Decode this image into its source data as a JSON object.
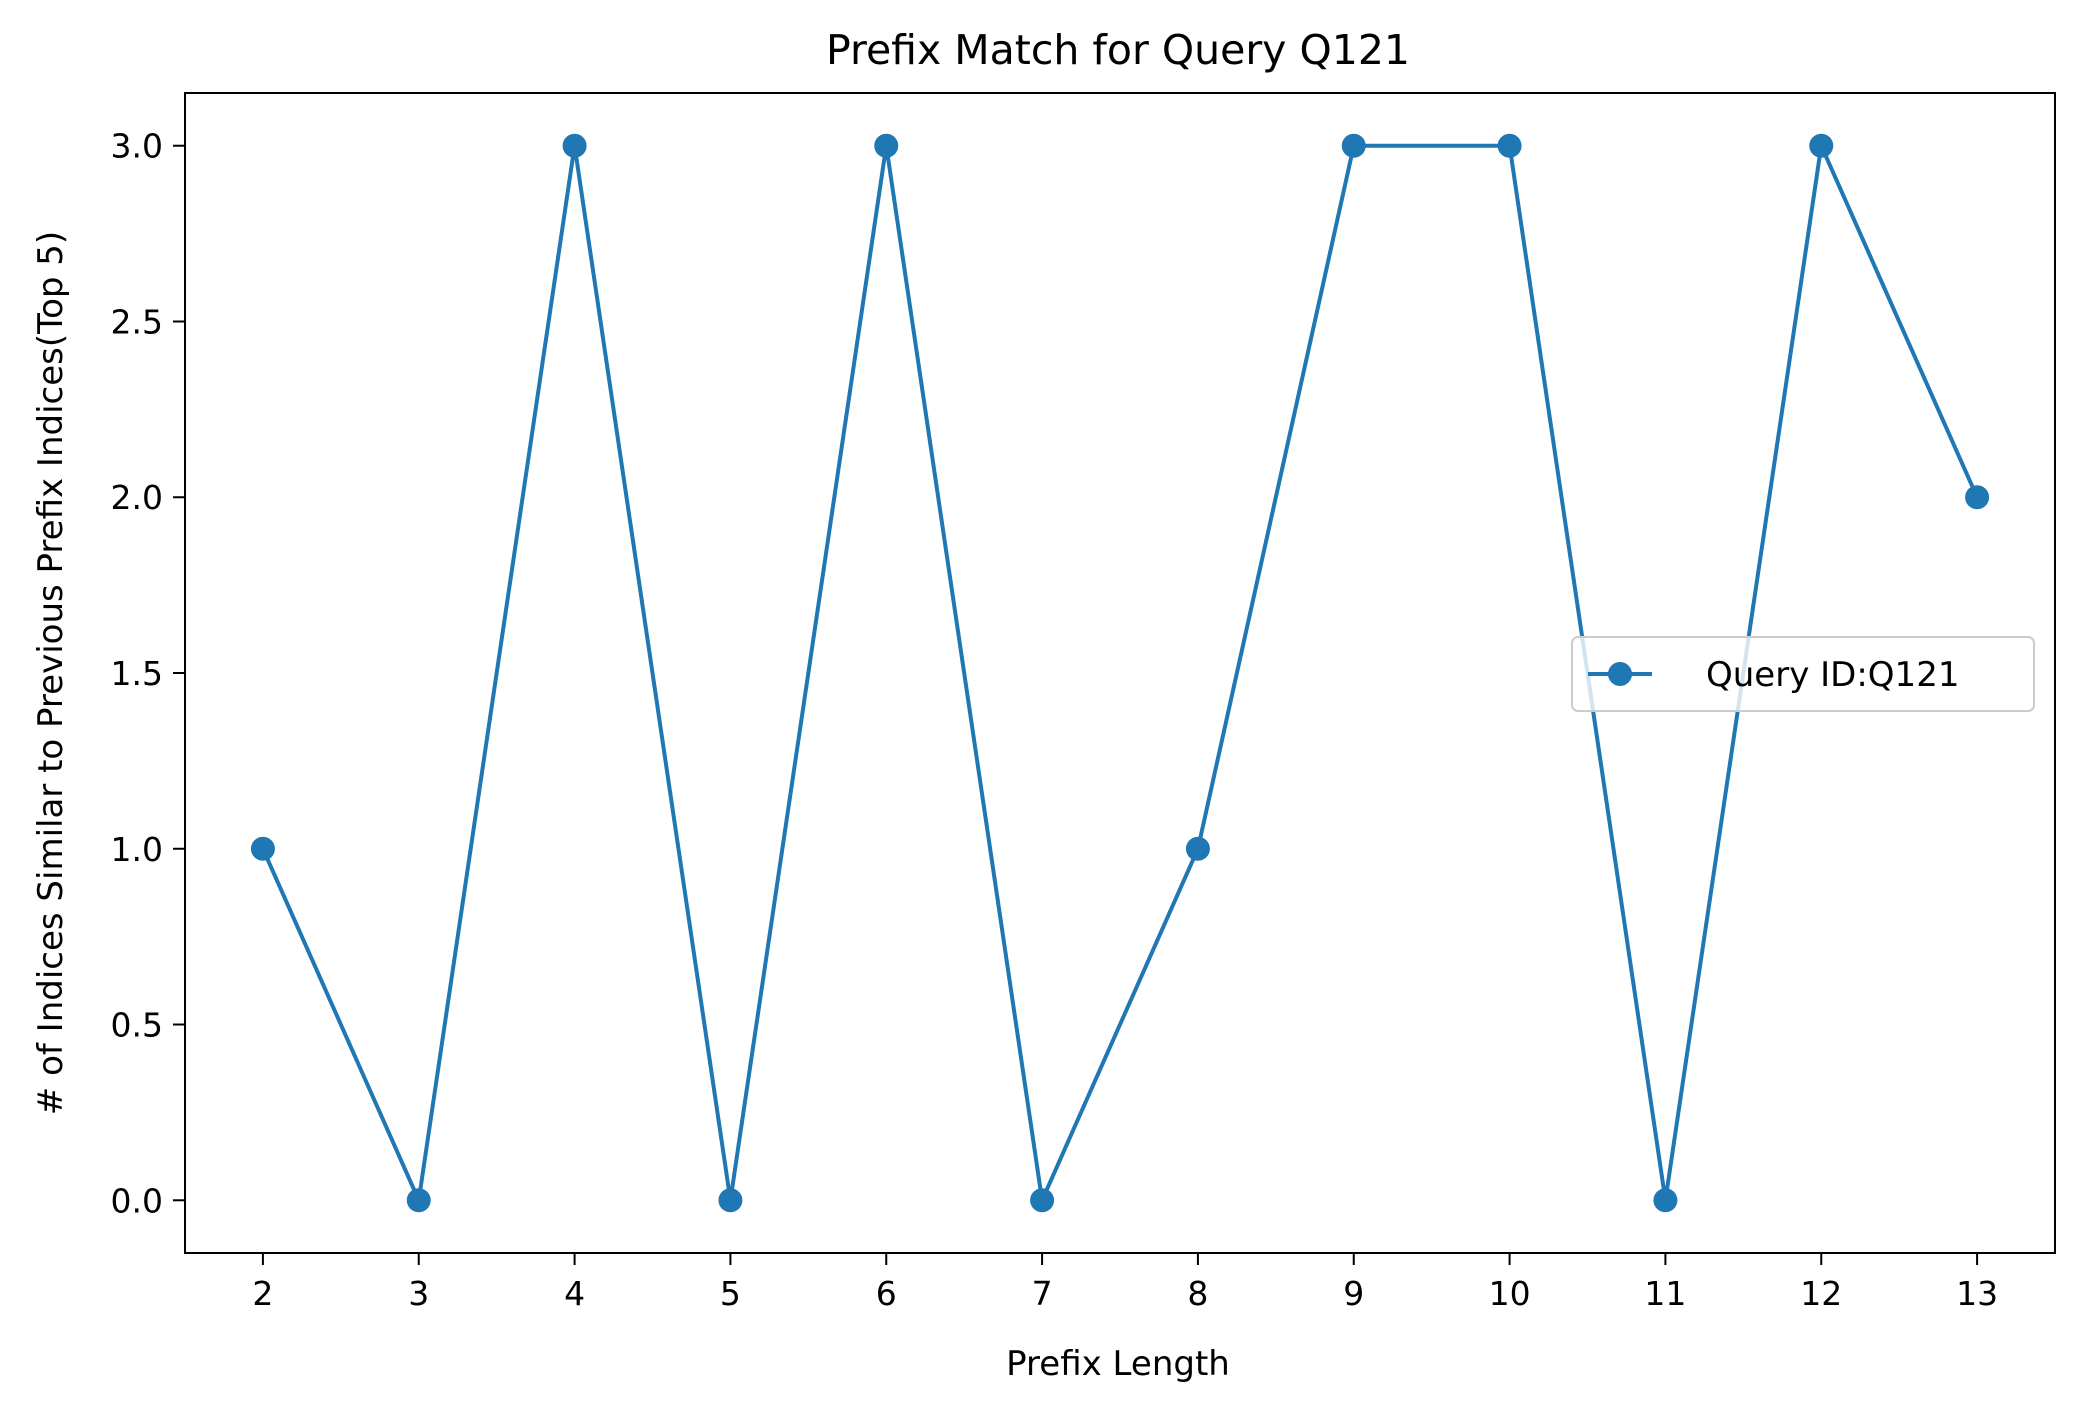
{
  "chart_data": {
    "type": "line",
    "title": "Prefix Match for Query Q121",
    "xlabel": "Prefix Length",
    "ylabel": "# of Indices Similar to Previous Prefix Indices(Top 5)",
    "x": [
      2,
      3,
      4,
      5,
      6,
      7,
      8,
      9,
      10,
      11,
      12,
      13
    ],
    "xlim": [
      1.5,
      13.5
    ],
    "ylim": [
      -0.15,
      3.15
    ],
    "xticks": [
      "2",
      "3",
      "4",
      "5",
      "6",
      "7",
      "8",
      "9",
      "10",
      "11",
      "12",
      "13"
    ],
    "yticks": [
      "0.0",
      "0.5",
      "1.0",
      "1.5",
      "2.0",
      "2.5",
      "3.0"
    ],
    "grid": false,
    "legend_position": "center-right",
    "series": [
      {
        "name": "Query ID:Q121",
        "values": [
          1,
          0,
          3,
          0,
          3,
          0,
          1,
          3,
          3,
          0,
          3,
          2
        ],
        "color": "#1f77b4",
        "marker": "circle"
      }
    ]
  }
}
